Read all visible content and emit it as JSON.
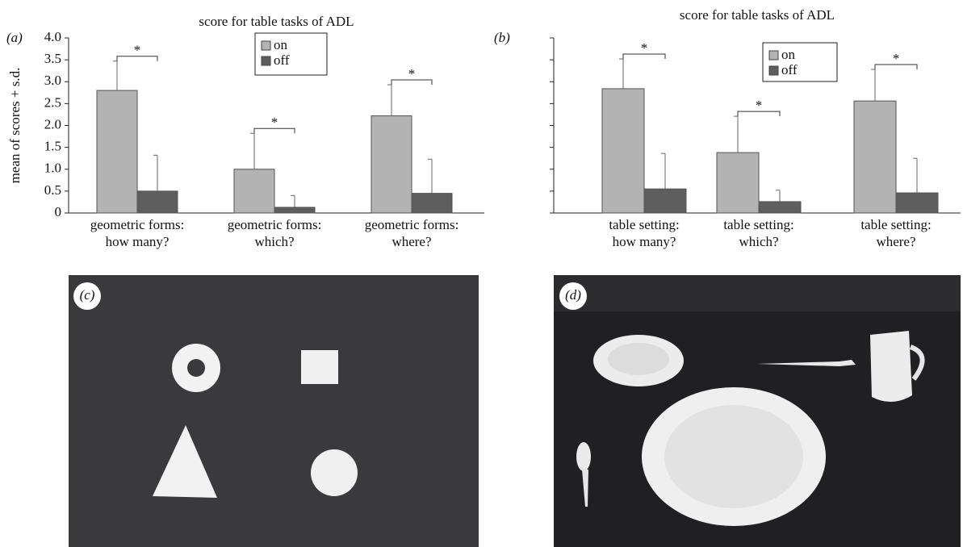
{
  "panels": [
    "(a)",
    "(b)",
    "(c)",
    "(d)"
  ],
  "chart_data": [
    {
      "type": "bar",
      "title": "score for table tasks of ADL",
      "ylabel": "mean of scores + s.d.",
      "categories": [
        [
          "geometric forms:",
          "how many?"
        ],
        [
          "geometric forms:",
          "which?"
        ],
        [
          "geometric forms:",
          "where?"
        ]
      ],
      "series": [
        {
          "name": "on",
          "color": "#b3b3b3",
          "values": [
            2.8,
            1.0,
            2.22
          ],
          "errors": [
            0.67,
            0.82,
            0.71
          ]
        },
        {
          "name": "off",
          "color": "#5e5e5e",
          "values": [
            0.5,
            0.13,
            0.45
          ],
          "errors": [
            0.82,
            0.27,
            0.78
          ]
        }
      ],
      "annotations": [
        "*",
        "*",
        "*"
      ],
      "ylim": [
        0,
        4
      ],
      "yticks": [
        0,
        0.5,
        {
          "value": 1,
          "label": "1.0"
        },
        1.5,
        {
          "value": 2,
          "label": "2.0"
        },
        2.5,
        {
          "value": 3,
          "label": "3.0"
        },
        3.5,
        {
          "value": 4,
          "label": "4.0"
        }
      ],
      "legend": "top"
    },
    {
      "type": "bar",
      "title": "score for table tasks of ADL",
      "categories": [
        [
          "table setting:",
          "how many?"
        ],
        [
          "table setting:",
          "which?"
        ],
        [
          "table setting:",
          "where?"
        ]
      ],
      "series": [
        {
          "name": "on",
          "color": "#b3b3b3",
          "values": [
            2.84,
            1.38,
            2.56
          ],
          "errors": [
            0.68,
            0.83,
            0.72
          ]
        },
        {
          "name": "off",
          "color": "#5e5e5e",
          "values": [
            0.55,
            0.26,
            0.46
          ],
          "errors": [
            0.81,
            0.26,
            0.79
          ]
        }
      ],
      "annotations": [
        "*",
        "*",
        "*"
      ],
      "ylim": [
        0,
        4
      ],
      "yticks": [
        0,
        0.5,
        1,
        1.5,
        2,
        2.5,
        3,
        3.5,
        4
      ],
      "show_tick_labels": false,
      "legend": "top"
    }
  ]
}
